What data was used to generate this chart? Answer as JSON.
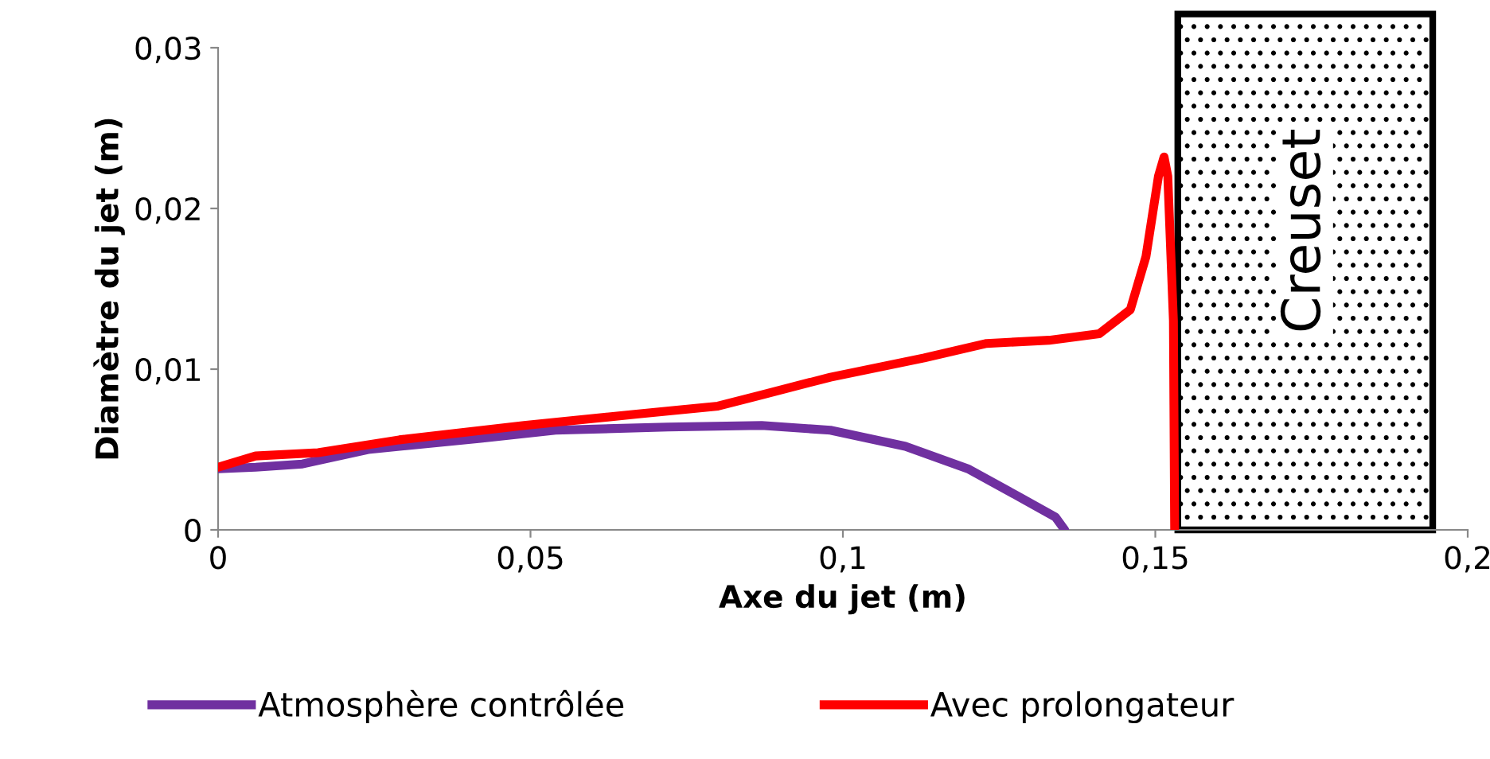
{
  "chart_data": {
    "type": "line",
    "xlabel": "Axe du jet (m)",
    "ylabel": "Diamètre du jet (m)",
    "xlim": [
      0,
      0.2
    ],
    "ylim": [
      0,
      0.03
    ],
    "xticks": [
      0,
      {
        "value": 0.05,
        "label": "0,05"
      },
      {
        "value": 0.1,
        "label": "0,1"
      },
      {
        "value": 0.15,
        "label": "0,15"
      },
      {
        "value": 0.2,
        "label": "0,2"
      }
    ],
    "yticks": [
      0,
      {
        "value": 0.01,
        "label": "0,01"
      },
      {
        "value": 0.02,
        "label": "0,02"
      },
      {
        "value": 0.03,
        "label": "0,03"
      }
    ],
    "grid": false,
    "legend": "bottom",
    "marker": "none",
    "line_style": "solid",
    "bands": [
      {
        "axis": "x",
        "from": 0.1536,
        "to": 0.1944,
        "label": "Creuset",
        "color": "#000000"
      }
    ],
    "series": [
      {
        "name": "Atmosphère contrôlée",
        "color": "#7030a0",
        "x": [
          0,
          0.006,
          0.0135,
          0.024,
          0.042,
          0.054,
          0.072,
          0.087,
          0.098,
          0.11,
          0.12,
          0.128,
          0.134,
          0.1355
        ],
        "values": [
          0.0038,
          0.0039,
          0.0041,
          0.005,
          0.0057,
          0.0062,
          0.0064,
          0.0065,
          0.0062,
          0.0052,
          0.0038,
          0.0021,
          0.0008,
          0
        ]
      },
      {
        "name": "Avec prolongateur",
        "color": "#ff0000",
        "x": [
          0,
          0.006,
          0.016,
          0.029,
          0.049,
          0.067,
          0.08,
          0.087,
          0.098,
          0.113,
          0.123,
          0.133,
          0.141,
          0.146,
          0.1485,
          0.1505,
          0.1514,
          0.152,
          0.1529,
          0.1531
        ],
        "values": [
          0.0039,
          0.0046,
          0.0048,
          0.0056,
          0.0065,
          0.0072,
          0.0077,
          0.0084,
          0.0095,
          0.0107,
          0.0116,
          0.0118,
          0.0122,
          0.0137,
          0.017,
          0.022,
          0.0232,
          0.022,
          0.013,
          0
        ]
      }
    ]
  }
}
